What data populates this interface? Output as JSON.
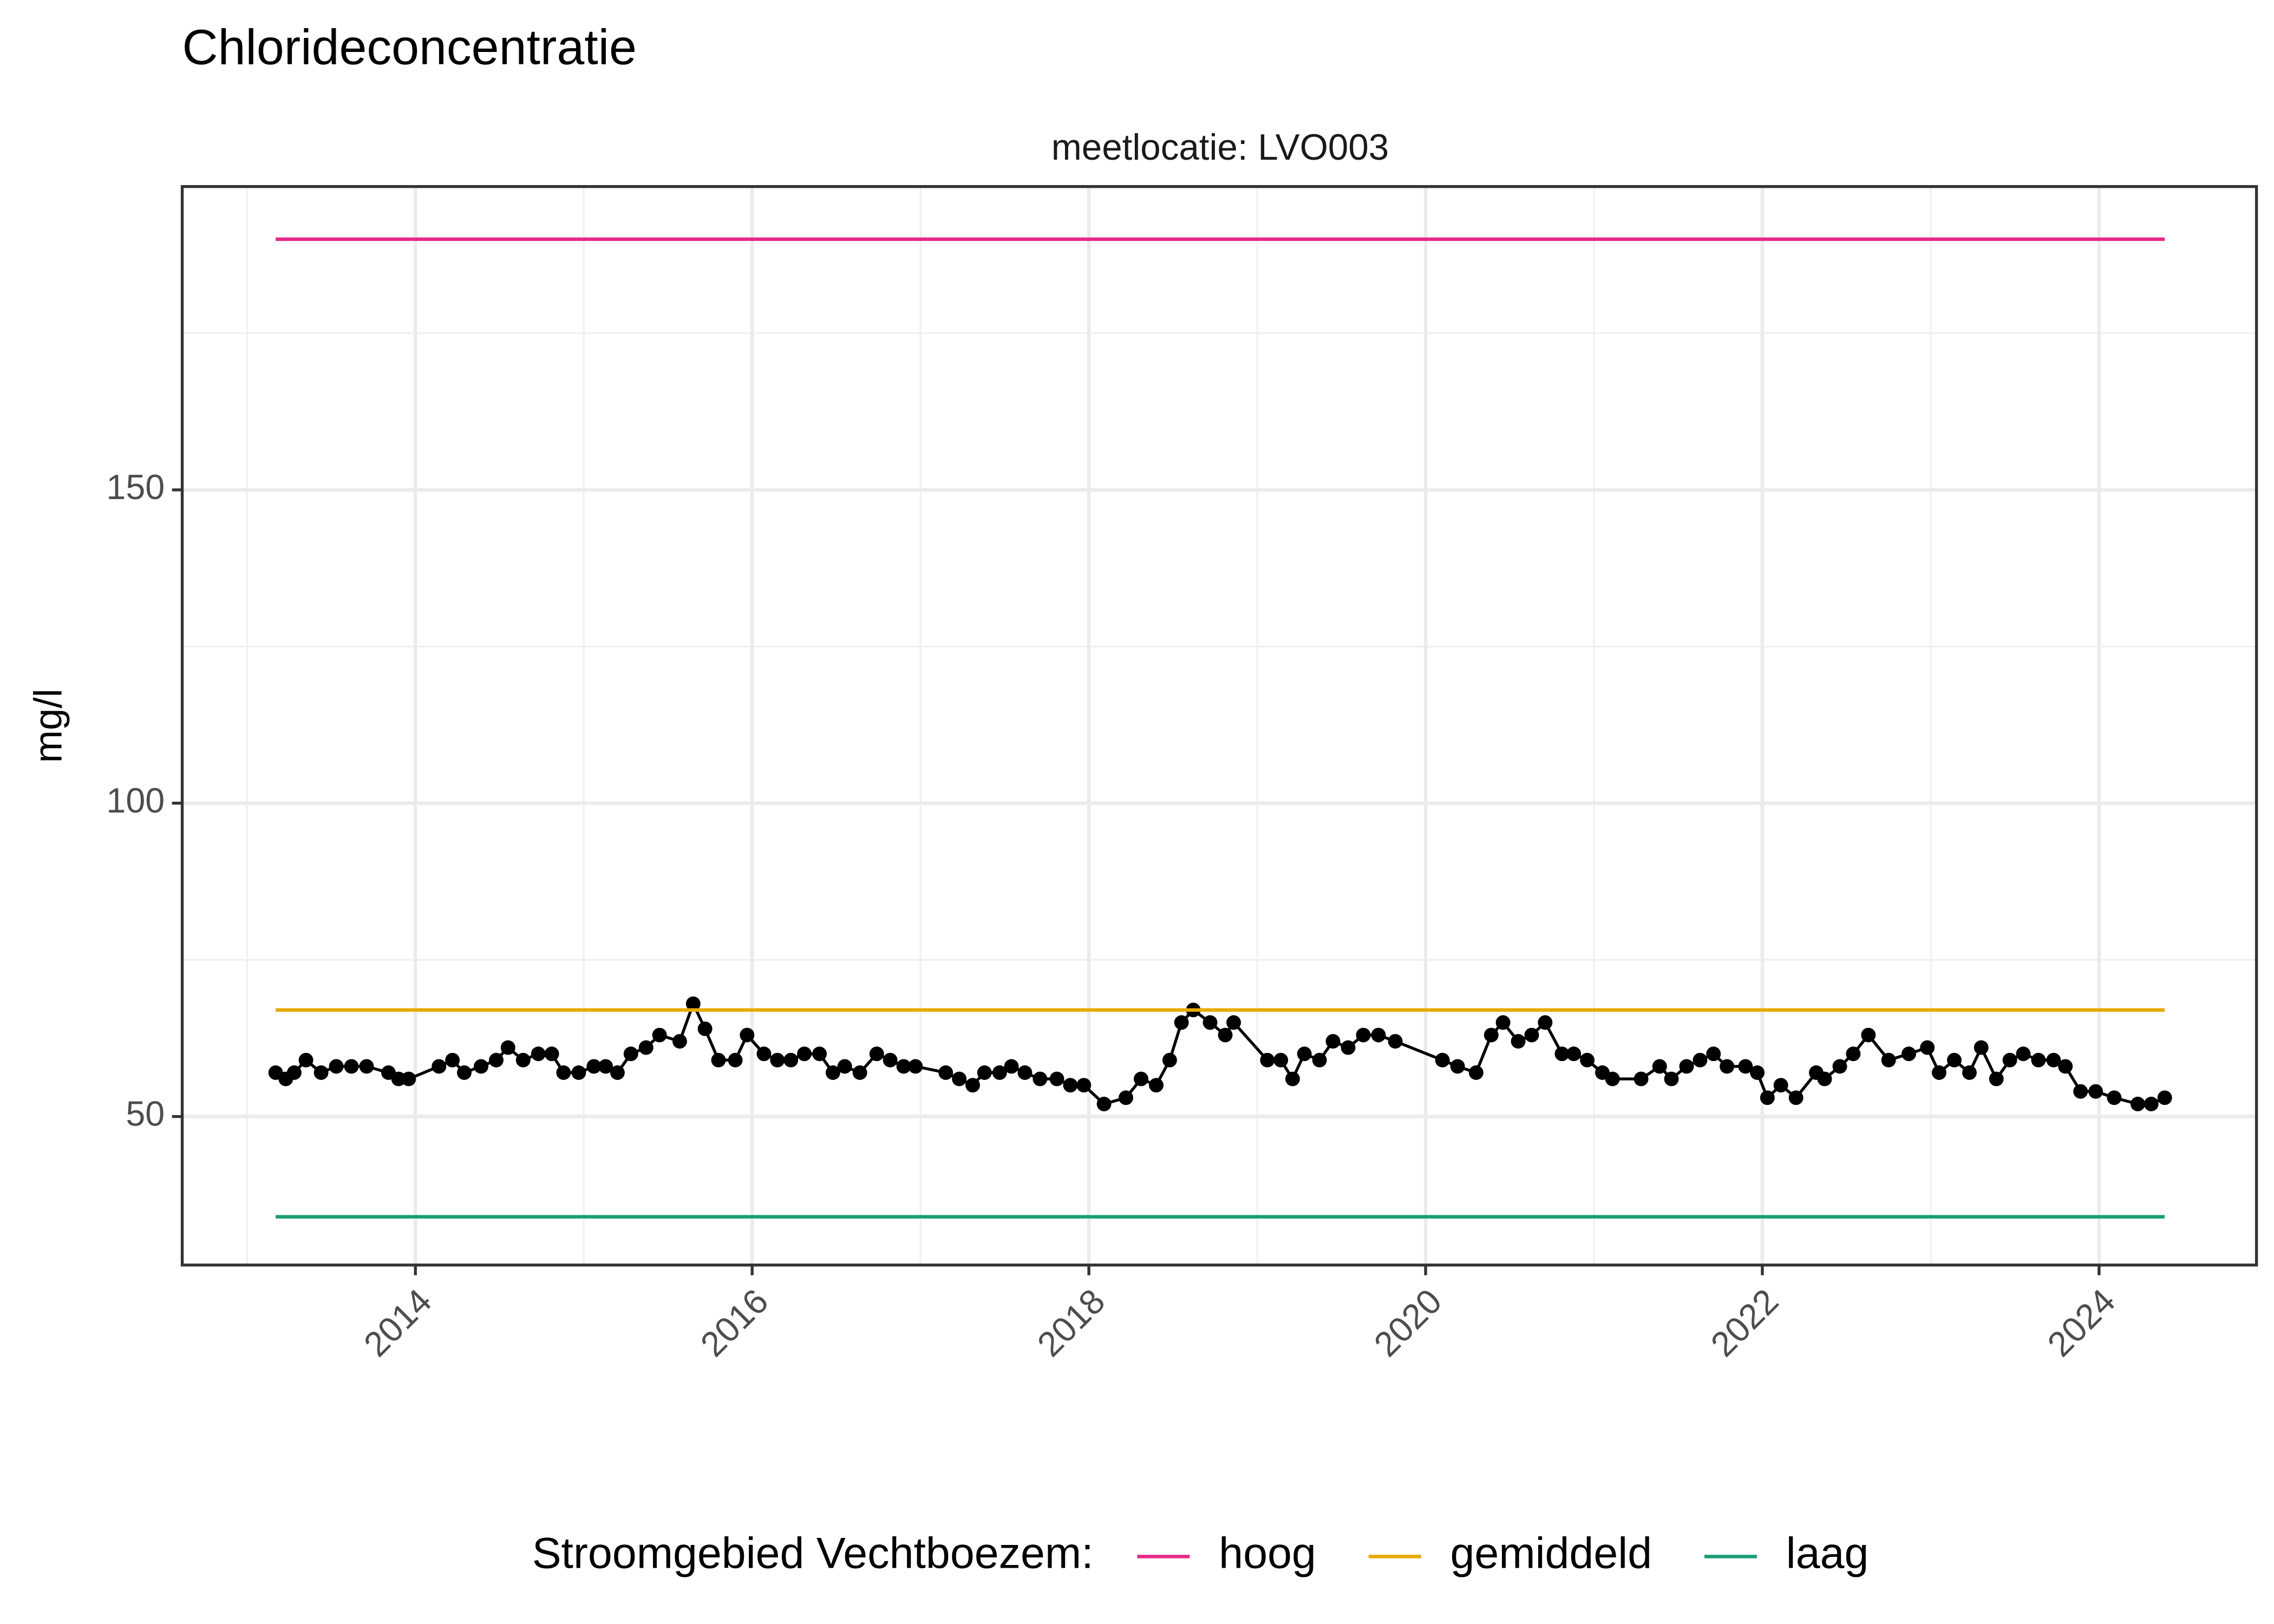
{
  "chart_data": {
    "type": "line",
    "title": "Chlorideconcentratie",
    "subtitle": "meetlocatie: LVO003",
    "y_label": "mg/l",
    "legend_title": "Stroomgebied Vechtboezem:",
    "legend_position": "bottom",
    "grid": true,
    "xlim": [
      2012.615,
      2024.935
    ],
    "xticks": [
      2014,
      2016,
      2018,
      2020,
      2022,
      2024
    ],
    "ylim": [
      26.3,
      198.4
    ],
    "yticks": [
      50,
      100,
      150
    ],
    "series": [
      {
        "color": "#000000",
        "markers": true,
        "x": [
          2013.17,
          2013.23,
          2013.28,
          2013.35,
          2013.44,
          2013.53,
          2013.62,
          2013.71,
          2013.84,
          2013.9,
          2013.96,
          2014.14,
          2014.22,
          2014.29,
          2014.39,
          2014.48,
          2014.55,
          2014.64,
          2014.73,
          2014.81,
          2014.88,
          2014.97,
          2015.06,
          2015.13,
          2015.2,
          2015.28,
          2015.37,
          2015.45,
          2015.57,
          2015.65,
          2015.72,
          2015.8,
          2015.9,
          2015.97,
          2016.07,
          2016.15,
          2016.23,
          2016.31,
          2016.4,
          2016.48,
          2016.55,
          2016.64,
          2016.74,
          2016.82,
          2016.9,
          2016.97,
          2017.15,
          2017.23,
          2017.31,
          2017.38,
          2017.47,
          2017.54,
          2017.62,
          2017.71,
          2017.81,
          2017.89,
          2017.97,
          2018.09,
          2018.22,
          2018.31,
          2018.4,
          2018.48,
          2018.55,
          2018.62,
          2018.72,
          2018.81,
          2018.86,
          2019.06,
          2019.14,
          2019.21,
          2019.28,
          2019.37,
          2019.45,
          2019.54,
          2019.63,
          2019.72,
          2019.82,
          2020.1,
          2020.19,
          2020.3,
          2020.39,
          2020.46,
          2020.55,
          2020.63,
          2020.71,
          2020.81,
          2020.88,
          2020.96,
          2021.05,
          2021.11,
          2021.28,
          2021.39,
          2021.46,
          2021.55,
          2021.63,
          2021.71,
          2021.79,
          2021.9,
          2021.97,
          2022.03,
          2022.11,
          2022.2,
          2022.32,
          2022.37,
          2022.46,
          2022.54,
          2022.63,
          2022.75,
          2022.87,
          2022.98,
          2023.05,
          2023.14,
          2023.23,
          2023.3,
          2023.39,
          2023.47,
          2023.55,
          2023.64,
          2023.73,
          2023.8,
          2023.89,
          2023.98,
          2024.09,
          2024.23,
          2024.31,
          2024.39
        ],
        "values": [
          57,
          56,
          57,
          59,
          57,
          58,
          58,
          58,
          57,
          56,
          56,
          58,
          59,
          57,
          58,
          59,
          61,
          59,
          60,
          60,
          57,
          57,
          58,
          58,
          57,
          60,
          61,
          63,
          62,
          68,
          64,
          59,
          59,
          63,
          60,
          59,
          59,
          60,
          60,
          57,
          58,
          57,
          60,
          59,
          58,
          58,
          57,
          56,
          55,
          57,
          57,
          58,
          57,
          56,
          56,
          55,
          55,
          52,
          53,
          56,
          55,
          59,
          65,
          67,
          65,
          63,
          65,
          59,
          59,
          56,
          60,
          59,
          62,
          61,
          63,
          63,
          62,
          59,
          58,
          57,
          63,
          65,
          62,
          63,
          65,
          60,
          60,
          59,
          57,
          56,
          56,
          58,
          56,
          58,
          59,
          60,
          58,
          58,
          57,
          53,
          55,
          53,
          57,
          56,
          58,
          60,
          63,
          59,
          60,
          61,
          57,
          59,
          57,
          61,
          56,
          59,
          60,
          59,
          59,
          58,
          54,
          54,
          53,
          52,
          52,
          53
        ]
      },
      {
        "name": "hoog",
        "color": "#e7298a",
        "x": [
          2013.17,
          2024.39
        ],
        "values": [
          190,
          190
        ]
      },
      {
        "name": "gemiddeld",
        "color": "#e6ab02",
        "x": [
          2013.17,
          2024.39
        ],
        "values": [
          67,
          67
        ]
      },
      {
        "name": "laag",
        "color": "#1b9e77",
        "x": [
          2013.17,
          2024.39
        ],
        "values": [
          34,
          34
        ]
      }
    ]
  }
}
